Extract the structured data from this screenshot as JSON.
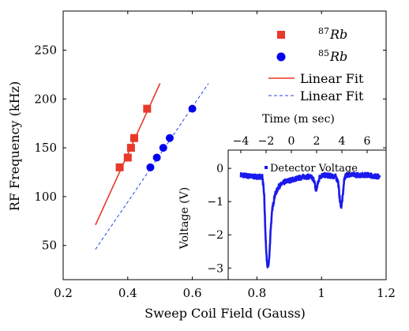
{
  "chart_data": [
    {
      "type": "scatter",
      "title": "",
      "xlabel": "Sweep Coil Field (Gauss)",
      "ylabel": "RF Frequency (kHz)",
      "xlim": [
        0.2,
        1.2
      ],
      "ylim": [
        15,
        290
      ],
      "xticks": [
        "0.2",
        "0.4",
        "0.6",
        "0.8",
        "1",
        "1.2"
      ],
      "xtick_values": [
        0.2,
        0.4,
        0.6,
        0.8,
        1.0,
        1.2
      ],
      "yticks": [
        "50",
        "100",
        "150",
        "200",
        "250"
      ],
      "ytick_values": [
        50,
        100,
        150,
        200,
        250
      ],
      "grid": false,
      "legend_position": "top-right",
      "series": [
        {
          "name": "87Rb",
          "name_base": "Rb",
          "name_sup": "87",
          "kind": "scatter",
          "marker": "square",
          "color": "#e8392a",
          "x": [
            0.375,
            0.4,
            0.41,
            0.42,
            0.46
          ],
          "y": [
            130,
            140,
            150,
            160,
            190
          ]
        },
        {
          "name": "85Rb",
          "name_base": "Rb",
          "name_sup": "85",
          "kind": "scatter",
          "marker": "circle",
          "color": "#0000ee",
          "x": [
            0.47,
            0.49,
            0.51,
            0.53,
            0.6
          ],
          "y": [
            130,
            140,
            150,
            160,
            190
          ]
        },
        {
          "name": "Linear Fit",
          "kind": "line",
          "style": "solid",
          "color": "#e8392a",
          "x": [
            0.3,
            0.5
          ],
          "y": [
            71,
            216
          ]
        },
        {
          "name": "Linear Fit",
          "kind": "line",
          "style": "dashed",
          "color": "#2244ee",
          "x": [
            0.3,
            0.65
          ],
          "y": [
            46,
            216
          ]
        }
      ]
    },
    {
      "type": "line",
      "title": "",
      "xlabel": "Time (m sec)",
      "ylabel": "Voltage (V)",
      "xlim": [
        -5,
        7.5
      ],
      "ylim": [
        -3.35,
        0.55
      ],
      "top_xticks": [
        "−4",
        "−2",
        "0",
        "2",
        "4",
        "6"
      ],
      "top_xtick_values": [
        -4,
        -2,
        0,
        2,
        4,
        6
      ],
      "bottom_xticks": [
        "0.8",
        "1"
      ],
      "bottom_xtick_values": [
        0.8,
        1.0
      ],
      "yticks": [
        "0",
        "−1",
        "−2",
        "−3"
      ],
      "ytick_values": [
        0,
        -1,
        -2,
        -3
      ],
      "grid": false,
      "legend_position": "top-right",
      "series": [
        {
          "name": "Detector Voltage",
          "color": "#1a1aee",
          "marker": "dot",
          "x": [
            -4.0,
            -3.0,
            -2.3,
            -2.15,
            -2.05,
            -1.95,
            -1.85,
            -1.75,
            -1.65,
            -1.5,
            -1.3,
            -1.0,
            -0.5,
            0.0,
            0.5,
            1.0,
            1.5,
            1.8,
            1.95,
            2.1,
            2.25,
            2.5,
            3.0,
            3.5,
            3.7,
            3.85,
            3.95,
            4.05,
            4.2,
            4.35,
            4.6,
            5.0,
            6.0,
            7.0
          ],
          "y": [
            -0.2,
            -0.25,
            -0.25,
            -0.8,
            -2.0,
            -2.8,
            -3.0,
            -2.7,
            -1.9,
            -1.2,
            -0.8,
            -0.55,
            -0.4,
            -0.35,
            -0.3,
            -0.25,
            -0.25,
            -0.35,
            -0.7,
            -0.45,
            -0.25,
            -0.2,
            -0.22,
            -0.25,
            -0.4,
            -1.0,
            -1.15,
            -0.9,
            -0.3,
            -0.2,
            -0.18,
            -0.2,
            -0.2,
            -0.25
          ]
        }
      ]
    }
  ]
}
